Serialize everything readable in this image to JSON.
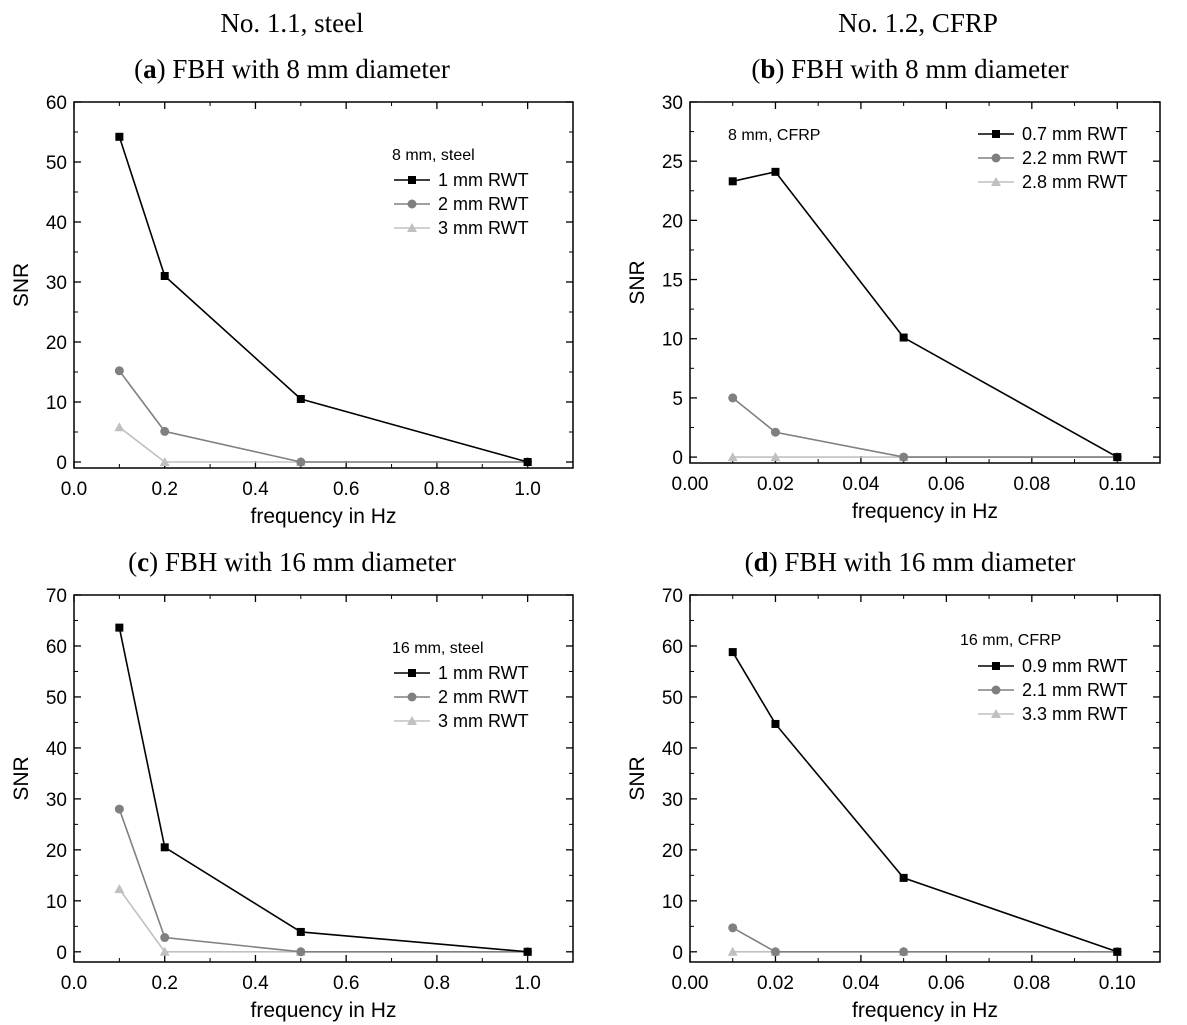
{
  "headers": {
    "left": "No. 1.1, steel",
    "right": "No. 1.2, CFRP"
  },
  "colors": {
    "series1": "#000000",
    "series2": "#808080",
    "series3": "#c0c0c0"
  },
  "chart_data": [
    {
      "type": "line",
      "panel_letter": "a",
      "title": "FBH with 8 mm diameter",
      "xlabel": "frequency in Hz",
      "ylabel": "SNR",
      "xlim": [
        0.0,
        1.1
      ],
      "ylim": [
        -1,
        60
      ],
      "xticks": [
        "0.0",
        "0.2",
        "0.4",
        "0.6",
        "0.8",
        "1.0"
      ],
      "yticks": [
        "0",
        "10",
        "20",
        "30",
        "40",
        "50",
        "60"
      ],
      "legend_title": "8 mm, steel",
      "legend_position": "top-right",
      "series": [
        {
          "name": "1 mm RWT",
          "marker": "square",
          "x": [
            0.1,
            0.2,
            0.5,
            1.0
          ],
          "y": [
            54.2,
            31.0,
            10.5,
            0.0
          ]
        },
        {
          "name": "2 mm RWT",
          "marker": "circle",
          "x": [
            0.1,
            0.2,
            0.5,
            1.0
          ],
          "y": [
            15.2,
            5.1,
            0.0,
            0.0
          ]
        },
        {
          "name": "3 mm RWT",
          "marker": "triangle",
          "x": [
            0.1,
            0.2,
            0.5,
            1.0
          ],
          "y": [
            5.8,
            0.0,
            0.0,
            0.0
          ]
        }
      ]
    },
    {
      "type": "line",
      "panel_letter": "b",
      "title": "FBH with 8 mm diameter",
      "xlabel": "frequency in Hz",
      "ylabel": "SNR",
      "xlim": [
        0.0,
        0.11
      ],
      "ylim": [
        -0.5,
        30
      ],
      "xticks": [
        "0.00",
        "0.02",
        "0.04",
        "0.06",
        "0.08",
        "0.10"
      ],
      "yticks": [
        "0",
        "5",
        "10",
        "15",
        "20",
        "25",
        "30"
      ],
      "legend_title": "8 mm, CFRP",
      "legend_position": "top-right",
      "series": [
        {
          "name": "0.7 mm RWT",
          "marker": "square",
          "x": [
            0.01,
            0.02,
            0.05,
            0.1
          ],
          "y": [
            23.3,
            24.1,
            10.1,
            0.0
          ]
        },
        {
          "name": "2.2 mm RWT",
          "marker": "circle",
          "x": [
            0.01,
            0.02,
            0.05,
            0.1
          ],
          "y": [
            5.0,
            2.1,
            0.0,
            0.0
          ]
        },
        {
          "name": "2.8 mm RWT",
          "marker": "triangle",
          "x": [
            0.01,
            0.02,
            0.05,
            0.1
          ],
          "y": [
            0.0,
            0.0,
            0.0,
            0.0
          ]
        }
      ]
    },
    {
      "type": "line",
      "panel_letter": "c",
      "title": "FBH with 16 mm diameter",
      "xlabel": "frequency in Hz",
      "ylabel": "SNR",
      "xlim": [
        0.0,
        1.1
      ],
      "ylim": [
        -2,
        70
      ],
      "xticks": [
        "0.0",
        "0.2",
        "0.4",
        "0.6",
        "0.8",
        "1.0"
      ],
      "yticks": [
        "0",
        "10",
        "20",
        "30",
        "40",
        "50",
        "60",
        "70"
      ],
      "legend_title": "16 mm, steel",
      "legend_position": "top-right",
      "series": [
        {
          "name": "1 mm RWT",
          "marker": "square",
          "x": [
            0.1,
            0.2,
            0.5,
            1.0
          ],
          "y": [
            63.6,
            20.5,
            3.9,
            0.0
          ]
        },
        {
          "name": "2 mm RWT",
          "marker": "circle",
          "x": [
            0.1,
            0.2,
            0.5,
            1.0
          ],
          "y": [
            28.0,
            2.8,
            0.0,
            0.0
          ]
        },
        {
          "name": "3 mm RWT",
          "marker": "triangle",
          "x": [
            0.1,
            0.2,
            0.5,
            1.0
          ],
          "y": [
            12.3,
            0.0,
            0.0,
            0.0
          ]
        }
      ]
    },
    {
      "type": "line",
      "panel_letter": "d",
      "title": "FBH with 16 mm diameter",
      "xlabel": "frequency in Hz",
      "ylabel": "SNR",
      "xlim": [
        0.0,
        0.11
      ],
      "ylim": [
        -2,
        70
      ],
      "xticks": [
        "0.00",
        "0.02",
        "0.04",
        "0.06",
        "0.08",
        "0.10"
      ],
      "yticks": [
        "0",
        "10",
        "20",
        "30",
        "40",
        "50",
        "60",
        "70"
      ],
      "legend_title": "16 mm, CFRP",
      "legend_position": "top-right",
      "series": [
        {
          "name": "0.9 mm RWT",
          "marker": "square",
          "x": [
            0.01,
            0.02,
            0.05,
            0.1
          ],
          "y": [
            58.8,
            44.7,
            14.5,
            0.0
          ]
        },
        {
          "name": "2.1 mm RWT",
          "marker": "circle",
          "x": [
            0.01,
            0.02,
            0.05,
            0.1
          ],
          "y": [
            4.7,
            0.0,
            0.0,
            0.0
          ]
        },
        {
          "name": "3.3 mm RWT",
          "marker": "triangle",
          "x": [
            0.01,
            0.02,
            0.05,
            0.1
          ],
          "y": [
            0.0,
            0.0,
            0.0,
            0.0
          ]
        }
      ]
    }
  ]
}
